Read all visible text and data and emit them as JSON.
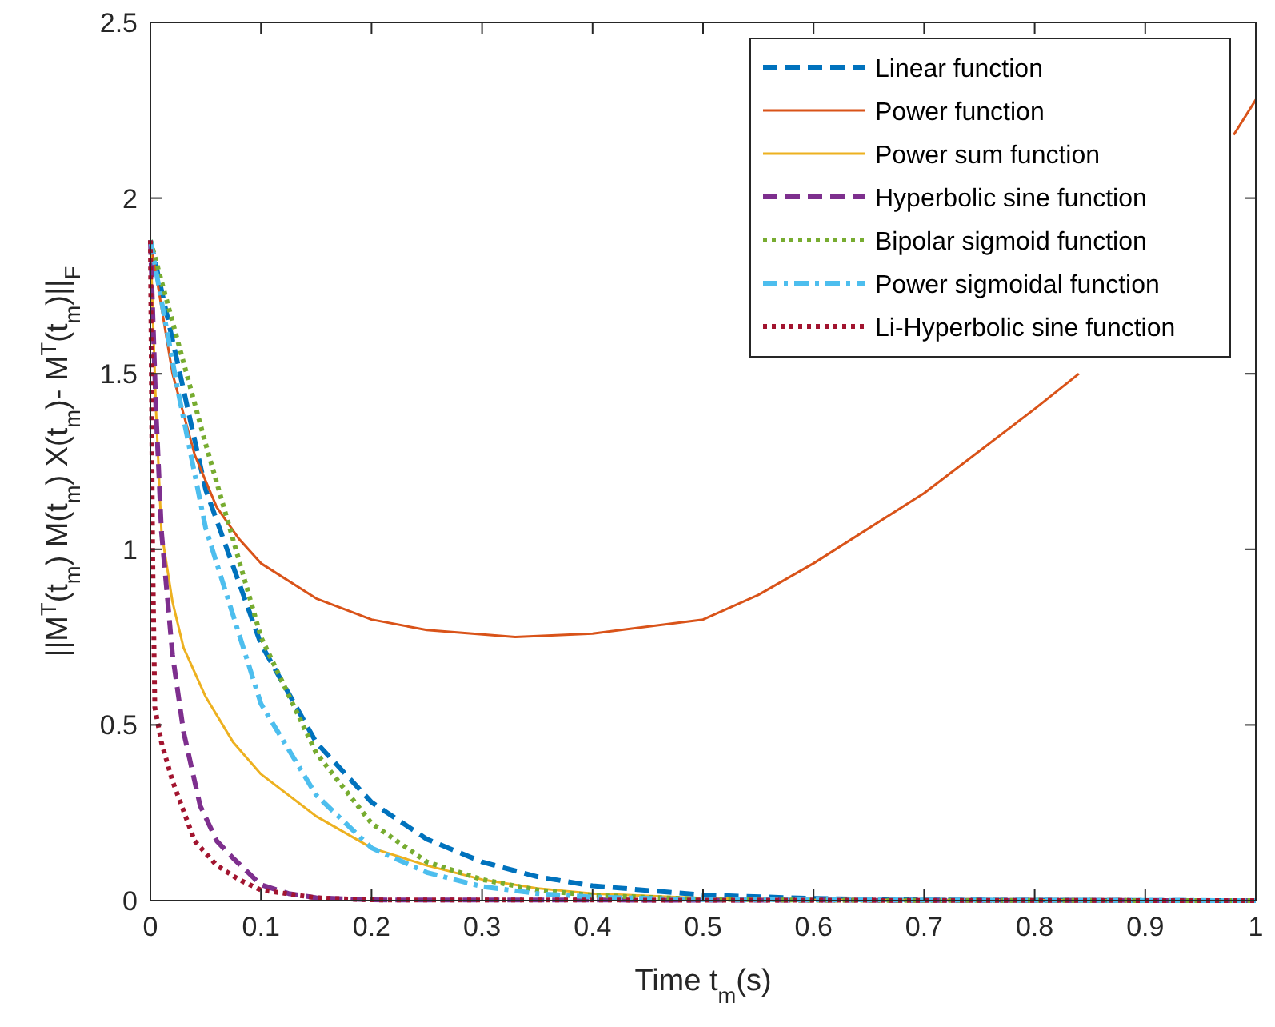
{
  "chart_data": {
    "type": "line",
    "xlabel": "Time t$_{m}$(s)",
    "ylabel": "||M$^{T}$(t$_{m}$) M(t$_{m}$) X(t$_{m}$)- M$^{T}$(t$_{m}$)||$_{F}$",
    "xlim": [
      0,
      1
    ],
    "ylim": [
      0,
      2.5
    ],
    "xticks": [
      0,
      0.1,
      0.2,
      0.3,
      0.4,
      0.5,
      0.6,
      0.7,
      0.8,
      0.9,
      1
    ],
    "yticks": [
      0,
      0.5,
      1,
      1.5,
      2,
      2.5
    ],
    "grid": false,
    "legend": "top right",
    "marker": "none",
    "series": [
      {
        "name": "Linear function",
        "color": "#0072bd",
        "line_style": "dashed",
        "x": [
          0,
          0.05,
          0.1,
          0.15,
          0.2,
          0.25,
          0.3,
          0.35,
          0.4,
          0.5,
          0.6,
          0.7,
          0.8,
          1
        ],
        "values": [
          1.88,
          1.17,
          0.73,
          0.45,
          0.28,
          0.175,
          0.11,
          0.068,
          0.042,
          0.016,
          0.006,
          0.002,
          0.001,
          0
        ]
      },
      {
        "name": "Power function",
        "color": "#d95319",
        "line_style": "solid",
        "x": [
          0,
          0.02,
          0.04,
          0.06,
          0.08,
          0.1,
          0.15,
          0.2,
          0.25,
          0.33,
          0.4,
          0.5,
          0.55,
          0.6,
          0.7,
          0.8,
          0.84,
          0.9,
          0.98,
          1
        ],
        "values": [
          1.88,
          1.5,
          1.27,
          1.12,
          1.03,
          0.96,
          0.86,
          0.8,
          0.77,
          0.75,
          0.76,
          0.8,
          0.87,
          0.96,
          1.16,
          1.4,
          1.5,
          null,
          2.18,
          2.28
        ]
      },
      {
        "name": "Power sum function",
        "color": "#edb120",
        "line_style": "solid",
        "x": [
          0,
          0.005,
          0.01,
          0.02,
          0.03,
          0.05,
          0.075,
          0.1,
          0.15,
          0.2,
          0.25,
          0.3,
          0.35,
          0.4,
          0.5,
          0.6,
          1
        ],
        "values": [
          1.88,
          1.4,
          1.05,
          0.85,
          0.72,
          0.58,
          0.45,
          0.36,
          0.24,
          0.15,
          0.1,
          0.06,
          0.035,
          0.02,
          0.007,
          0.002,
          0
        ]
      },
      {
        "name": "Hyperbolic sine function",
        "color": "#7e2f8e",
        "line_style": "dashed",
        "x": [
          0,
          0.005,
          0.01,
          0.02,
          0.03,
          0.045,
          0.06,
          0.075,
          0.1,
          0.125,
          0.15,
          0.2,
          1
        ],
        "values": [
          1.88,
          1.4,
          1.05,
          0.7,
          0.48,
          0.27,
          0.17,
          0.12,
          0.045,
          0.02,
          0.008,
          0.002,
          0
        ]
      },
      {
        "name": "Bipolar sigmoid function",
        "color": "#77ac30",
        "line_style": "dotted",
        "x": [
          0,
          0.05,
          0.1,
          0.15,
          0.2,
          0.25,
          0.3,
          0.35,
          0.4,
          0.5,
          0.6,
          1
        ],
        "values": [
          1.88,
          1.3,
          0.75,
          0.42,
          0.22,
          0.11,
          0.06,
          0.03,
          0.015,
          0.004,
          0.001,
          0
        ]
      },
      {
        "name": "Power sigmoidal function",
        "color": "#4dbeee",
        "line_style": "dashdot",
        "x": [
          0,
          0.025,
          0.05,
          0.1,
          0.15,
          0.2,
          0.25,
          0.3,
          0.35,
          0.4,
          0.5,
          1
        ],
        "values": [
          1.88,
          1.45,
          1.06,
          0.56,
          0.3,
          0.15,
          0.08,
          0.04,
          0.02,
          0.01,
          0.003,
          0
        ]
      },
      {
        "name": "Li-Hyperbolic sine function",
        "color": "#a2142f",
        "line_style": "dotted",
        "x": [
          0,
          0.002,
          0.004,
          0.01,
          0.02,
          0.04,
          0.06,
          0.08,
          0.1,
          0.15,
          0.2,
          1
        ],
        "values": [
          1.88,
          1.0,
          0.55,
          0.45,
          0.34,
          0.17,
          0.1,
          0.06,
          0.03,
          0.008,
          0.002,
          0
        ]
      }
    ]
  }
}
